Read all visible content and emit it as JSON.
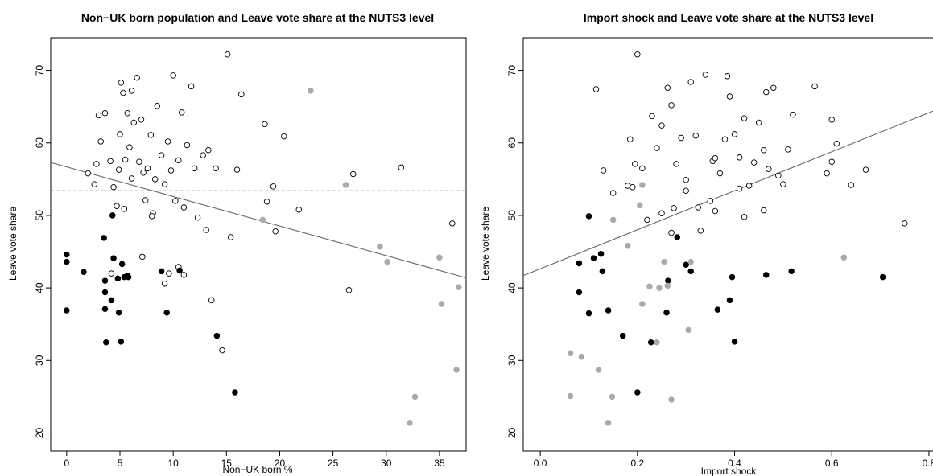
{
  "chart_data": [
    {
      "type": "scatter",
      "title": "Non−UK born population and Leave vote share at the NUTS3 level",
      "xlabel": "Non−UK born %",
      "ylabel": "Leave vote share",
      "xlim": [
        -1.5,
        37.5
      ],
      "ylim": [
        17.5,
        74.5
      ],
      "xticks": [
        0,
        5,
        10,
        15,
        20,
        25,
        30,
        35
      ],
      "xtick_labels": [
        "0",
        "5",
        "10",
        "15",
        "20",
        "25",
        "30",
        "35"
      ],
      "yticks": [
        20,
        30,
        40,
        50,
        60,
        70
      ],
      "ytick_labels": [
        "20",
        "30",
        "40",
        "50",
        "60",
        "70"
      ],
      "fit_line": {
        "x": [
          -1.5,
          37.5
        ],
        "y": [
          57.3,
          41.4
        ]
      },
      "mean_line": {
        "y": 53.4
      },
      "series": [
        {
          "marker": "open",
          "color": "#000000",
          "points": [
            [
              3.2,
              60.2
            ],
            [
              3.6,
              64.1
            ],
            [
              4.1,
              57.5
            ],
            [
              4.4,
              53.9
            ],
            [
              4.7,
              51.3
            ],
            [
              4.9,
              56.3
            ],
            [
              5.0,
              61.2
            ],
            [
              5.1,
              68.3
            ],
            [
              5.3,
              66.9
            ],
            [
              5.5,
              57.7
            ],
            [
              5.7,
              64.1
            ],
            [
              5.9,
              59.4
            ],
            [
              6.1,
              55.1
            ],
            [
              6.3,
              62.8
            ],
            [
              6.6,
              69.0
            ],
            [
              6.8,
              57.4
            ],
            [
              7.0,
              63.2
            ],
            [
              7.2,
              55.9
            ],
            [
              7.4,
              52.1
            ],
            [
              7.6,
              56.5
            ],
            [
              7.9,
              61.1
            ],
            [
              8.1,
              50.3
            ],
            [
              8.3,
              55.0
            ],
            [
              8.5,
              65.1
            ],
            [
              8.9,
              58.3
            ],
            [
              9.2,
              54.3
            ],
            [
              9.5,
              60.2
            ],
            [
              9.8,
              56.2
            ],
            [
              10.0,
              69.3
            ],
            [
              10.2,
              52.0
            ],
            [
              10.5,
              57.6
            ],
            [
              10.8,
              64.2
            ],
            [
              11.0,
              51.1
            ],
            [
              11.3,
              59.7
            ],
            [
              11.7,
              67.8
            ],
            [
              12.0,
              56.5
            ],
            [
              12.3,
              49.7
            ],
            [
              12.8,
              58.3
            ],
            [
              13.1,
              48.0
            ],
            [
              13.3,
              59.0
            ],
            [
              13.6,
              38.3
            ],
            [
              14.0,
              56.5
            ],
            [
              14.6,
              31.4
            ],
            [
              15.1,
              72.2
            ],
            [
              15.4,
              47.0
            ],
            [
              16.0,
              56.3
            ],
            [
              16.4,
              66.7
            ],
            [
              18.6,
              62.6
            ],
            [
              18.8,
              51.9
            ],
            [
              19.4,
              54.0
            ],
            [
              19.6,
              47.8
            ],
            [
              20.4,
              60.9
            ],
            [
              21.8,
              50.8
            ],
            [
              26.5,
              39.7
            ],
            [
              26.9,
              55.7
            ],
            [
              31.4,
              56.6
            ],
            [
              36.2,
              48.9
            ],
            [
              2.0,
              55.8
            ],
            [
              2.6,
              54.3
            ],
            [
              3.0,
              63.8
            ],
            [
              6.1,
              67.2
            ],
            [
              9.2,
              40.6
            ],
            [
              9.6,
              42.0
            ],
            [
              10.5,
              42.9
            ],
            [
              11.0,
              41.8
            ],
            [
              7.1,
              44.3
            ],
            [
              4.2,
              42.0
            ],
            [
              5.4,
              50.9
            ],
            [
              2.8,
              57.1
            ],
            [
              8.0,
              49.9
            ]
          ]
        },
        {
          "marker": "filled",
          "color": "#000000",
          "points": [
            [
              0.0,
              44.6
            ],
            [
              0.0,
              43.6
            ],
            [
              0.0,
              36.9
            ],
            [
              1.6,
              42.2
            ],
            [
              3.5,
              46.9
            ],
            [
              3.6,
              41.0
            ],
            [
              3.6,
              39.4
            ],
            [
              3.6,
              37.1
            ],
            [
              3.7,
              32.5
            ],
            [
              4.2,
              38.3
            ],
            [
              4.3,
              50.0
            ],
            [
              4.4,
              44.1
            ],
            [
              4.9,
              36.6
            ],
            [
              5.1,
              32.6
            ],
            [
              5.2,
              43.3
            ],
            [
              5.4,
              41.5
            ],
            [
              5.7,
              41.7
            ],
            [
              5.8,
              41.5
            ],
            [
              8.9,
              42.3
            ],
            [
              9.4,
              36.6
            ],
            [
              10.6,
              42.4
            ],
            [
              14.1,
              33.4
            ],
            [
              15.8,
              25.6
            ],
            [
              4.8,
              41.3
            ]
          ]
        },
        {
          "marker": "grey",
          "color": "#aaaaaa",
          "points": [
            [
              22.9,
              67.2
            ],
            [
              18.4,
              49.4
            ],
            [
              26.2,
              54.2
            ],
            [
              29.4,
              45.7
            ],
            [
              30.1,
              43.6
            ],
            [
              32.2,
              21.4
            ],
            [
              32.7,
              25.0
            ],
            [
              35.0,
              44.2
            ],
            [
              35.2,
              37.8
            ],
            [
              36.6,
              28.7
            ],
            [
              36.8,
              40.1
            ]
          ]
        }
      ]
    },
    {
      "type": "scatter",
      "title": "Import shock and Leave vote share at the NUTS3 level",
      "xlabel": "Import shock",
      "ylabel": "Leave vote share",
      "xlim": [
        -0.035,
        0.82
      ],
      "ylim": [
        17.5,
        74.5
      ],
      "xticks": [
        0.0,
        0.2,
        0.4,
        0.6,
        0.8
      ],
      "xtick_labels": [
        "0.0",
        "0.2",
        "0.4",
        "0.6",
        "0.8"
      ],
      "yticks": [
        20,
        30,
        40,
        50,
        60,
        70
      ],
      "ytick_labels": [
        "20",
        "30",
        "40",
        "50",
        "60",
        "70"
      ],
      "fit_line": {
        "x": [
          -0.035,
          0.82
        ],
        "y": [
          41.7,
          64.7
        ]
      },
      "series": [
        {
          "marker": "open",
          "color": "#000000",
          "points": [
            [
              0.115,
              67.4
            ],
            [
              0.13,
              56.2
            ],
            [
              0.18,
              54.1
            ],
            [
              0.185,
              60.5
            ],
            [
              0.195,
              57.1
            ],
            [
              0.2,
              72.2
            ],
            [
              0.21,
              56.5
            ],
            [
              0.22,
              49.4
            ],
            [
              0.23,
              63.7
            ],
            [
              0.24,
              59.3
            ],
            [
              0.25,
              62.4
            ],
            [
              0.262,
              67.6
            ],
            [
              0.27,
              65.2
            ],
            [
              0.275,
              51.0
            ],
            [
              0.28,
              57.1
            ],
            [
              0.29,
              60.7
            ],
            [
              0.3,
              54.9
            ],
            [
              0.31,
              68.4
            ],
            [
              0.32,
              61.0
            ],
            [
              0.325,
              51.1
            ],
            [
              0.33,
              47.9
            ],
            [
              0.34,
              69.4
            ],
            [
              0.35,
              52.0
            ],
            [
              0.355,
              57.5
            ],
            [
              0.36,
              50.6
            ],
            [
              0.37,
              55.8
            ],
            [
              0.38,
              60.5
            ],
            [
              0.385,
              69.2
            ],
            [
              0.39,
              66.4
            ],
            [
              0.4,
              61.2
            ],
            [
              0.41,
              53.7
            ],
            [
              0.42,
              63.4
            ],
            [
              0.43,
              54.1
            ],
            [
              0.44,
              57.3
            ],
            [
              0.45,
              62.8
            ],
            [
              0.46,
              59.0
            ],
            [
              0.465,
              67.0
            ],
            [
              0.47,
              56.4
            ],
            [
              0.48,
              67.6
            ],
            [
              0.49,
              55.5
            ],
            [
              0.5,
              54.3
            ],
            [
              0.51,
              59.1
            ],
            [
              0.52,
              63.9
            ],
            [
              0.565,
              67.8
            ],
            [
              0.59,
              55.8
            ],
            [
              0.6,
              63.2
            ],
            [
              0.61,
              59.9
            ],
            [
              0.64,
              54.2
            ],
            [
              0.67,
              56.3
            ],
            [
              0.75,
              48.9
            ],
            [
              0.46,
              50.7
            ],
            [
              0.42,
              49.8
            ],
            [
              0.3,
              53.4
            ],
            [
              0.27,
              47.6
            ],
            [
              0.25,
              50.3
            ],
            [
              0.15,
              53.1
            ],
            [
              0.19,
              53.9
            ],
            [
              0.36,
              57.9
            ],
            [
              0.41,
              58.0
            ],
            [
              0.6,
              57.4
            ]
          ]
        },
        {
          "marker": "filled",
          "color": "#000000",
          "points": [
            [
              0.1,
              49.9
            ],
            [
              0.08,
              43.4
            ],
            [
              0.08,
              39.4
            ],
            [
              0.1,
              36.5
            ],
            [
              0.11,
              44.1
            ],
            [
              0.125,
              44.7
            ],
            [
              0.128,
              42.3
            ],
            [
              0.14,
              36.9
            ],
            [
              0.17,
              33.4
            ],
            [
              0.2,
              25.6
            ],
            [
              0.228,
              32.5
            ],
            [
              0.26,
              36.6
            ],
            [
              0.263,
              41.0
            ],
            [
              0.282,
              47.0
            ],
            [
              0.3,
              43.2
            ],
            [
              0.31,
              42.3
            ],
            [
              0.365,
              37.0
            ],
            [
              0.39,
              38.3
            ],
            [
              0.395,
              41.5
            ],
            [
              0.4,
              32.6
            ],
            [
              0.465,
              41.8
            ],
            [
              0.517,
              42.3
            ],
            [
              0.705,
              41.5
            ]
          ]
        },
        {
          "marker": "grey",
          "color": "#aaaaaa",
          "points": [
            [
              0.062,
              31.0
            ],
            [
              0.062,
              25.1
            ],
            [
              0.085,
              30.5
            ],
            [
              0.12,
              28.7
            ],
            [
              0.14,
              21.4
            ],
            [
              0.148,
              25.0
            ],
            [
              0.15,
              49.4
            ],
            [
              0.18,
              45.8
            ],
            [
              0.205,
              51.4
            ],
            [
              0.21,
              37.8
            ],
            [
              0.21,
              54.2
            ],
            [
              0.225,
              40.2
            ],
            [
              0.24,
              32.5
            ],
            [
              0.245,
              40.0
            ],
            [
              0.255,
              43.6
            ],
            [
              0.262,
              40.3
            ],
            [
              0.27,
              24.6
            ],
            [
              0.305,
              34.2
            ],
            [
              0.31,
              43.6
            ],
            [
              0.625,
              44.2
            ]
          ]
        }
      ]
    }
  ]
}
